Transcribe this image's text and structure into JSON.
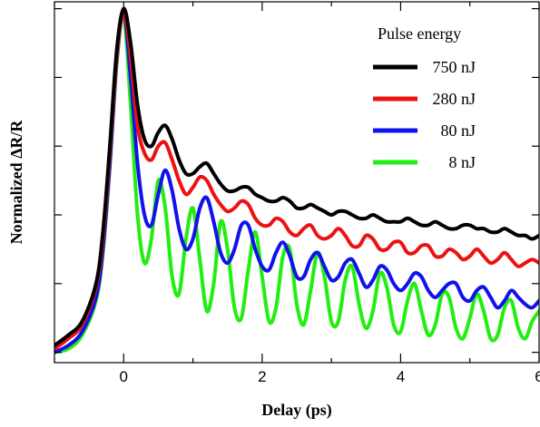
{
  "chart_data": {
    "type": "line",
    "title": "",
    "xlabel": "Delay (ps)",
    "ylabel": "Normalized ΔR/R",
    "xlim": [
      -1,
      6
    ],
    "ylim": [
      -0.03,
      1.02
    ],
    "x_ticks": [
      0,
      2,
      4,
      6
    ],
    "x_tick_labels": [
      "0",
      "2",
      "4",
      "6"
    ],
    "y_tick_count": 6,
    "y_tick_labels_shown": false,
    "grid": false,
    "legend": {
      "title": "Pulse energy",
      "placement": "top-right"
    },
    "series": [
      {
        "name": "750 nJ",
        "color": "#000000",
        "x": [
          -1.0,
          -0.8,
          -0.6,
          -0.4,
          -0.3,
          -0.2,
          -0.1,
          0.0,
          0.1,
          0.2,
          0.3,
          0.4,
          0.5,
          0.6,
          0.7,
          0.8,
          0.9,
          1.0,
          1.1,
          1.2,
          1.3,
          1.4,
          1.5,
          1.6,
          1.7,
          1.8,
          1.9,
          2.0,
          2.1,
          2.2,
          2.3,
          2.4,
          2.5,
          2.6,
          2.7,
          2.8,
          2.9,
          3.0,
          3.1,
          3.2,
          3.3,
          3.4,
          3.5,
          3.6,
          3.7,
          3.8,
          3.9,
          4.0,
          4.1,
          4.2,
          4.3,
          4.4,
          4.5,
          4.6,
          4.7,
          4.8,
          4.9,
          5.0,
          5.1,
          5.2,
          5.3,
          5.4,
          5.5,
          5.6,
          5.7,
          5.8,
          5.9,
          6.0
        ],
        "values": [
          0.02,
          0.05,
          0.09,
          0.2,
          0.35,
          0.6,
          0.88,
          1.0,
          0.9,
          0.72,
          0.62,
          0.6,
          0.64,
          0.66,
          0.62,
          0.56,
          0.52,
          0.52,
          0.54,
          0.55,
          0.52,
          0.49,
          0.47,
          0.47,
          0.48,
          0.48,
          0.46,
          0.45,
          0.44,
          0.44,
          0.45,
          0.44,
          0.42,
          0.42,
          0.43,
          0.42,
          0.41,
          0.4,
          0.41,
          0.41,
          0.4,
          0.39,
          0.39,
          0.4,
          0.39,
          0.38,
          0.38,
          0.38,
          0.39,
          0.38,
          0.37,
          0.37,
          0.38,
          0.37,
          0.36,
          0.36,
          0.37,
          0.37,
          0.36,
          0.36,
          0.35,
          0.35,
          0.36,
          0.35,
          0.34,
          0.34,
          0.33,
          0.34
        ]
      },
      {
        "name": "280 nJ",
        "color": "#ee1111",
        "x": [
          -1.0,
          -0.8,
          -0.6,
          -0.4,
          -0.3,
          -0.2,
          -0.1,
          0.0,
          0.1,
          0.2,
          0.3,
          0.4,
          0.5,
          0.6,
          0.7,
          0.8,
          0.9,
          1.0,
          1.1,
          1.2,
          1.3,
          1.4,
          1.5,
          1.6,
          1.7,
          1.8,
          1.9,
          2.0,
          2.1,
          2.2,
          2.3,
          2.4,
          2.5,
          2.6,
          2.7,
          2.8,
          2.9,
          3.0,
          3.1,
          3.2,
          3.3,
          3.4,
          3.5,
          3.6,
          3.7,
          3.8,
          3.9,
          4.0,
          4.1,
          4.2,
          4.3,
          4.4,
          4.5,
          4.6,
          4.7,
          4.8,
          4.9,
          5.0,
          5.1,
          5.2,
          5.3,
          5.4,
          5.5,
          5.6,
          5.7,
          5.8,
          5.9,
          6.0
        ],
        "values": [
          0.01,
          0.04,
          0.08,
          0.19,
          0.33,
          0.58,
          0.86,
          0.99,
          0.86,
          0.66,
          0.58,
          0.56,
          0.6,
          0.61,
          0.56,
          0.5,
          0.46,
          0.48,
          0.51,
          0.5,
          0.46,
          0.43,
          0.41,
          0.42,
          0.44,
          0.43,
          0.39,
          0.37,
          0.37,
          0.39,
          0.38,
          0.35,
          0.34,
          0.36,
          0.37,
          0.34,
          0.33,
          0.34,
          0.36,
          0.34,
          0.31,
          0.31,
          0.34,
          0.33,
          0.3,
          0.3,
          0.32,
          0.32,
          0.29,
          0.29,
          0.31,
          0.31,
          0.28,
          0.28,
          0.3,
          0.29,
          0.27,
          0.28,
          0.3,
          0.28,
          0.26,
          0.27,
          0.29,
          0.27,
          0.25,
          0.26,
          0.27,
          0.26
        ]
      },
      {
        "name": "80 nJ",
        "color": "#1111ee",
        "x": [
          -1.0,
          -0.8,
          -0.6,
          -0.4,
          -0.3,
          -0.2,
          -0.1,
          0.0,
          0.1,
          0.2,
          0.3,
          0.4,
          0.5,
          0.6,
          0.7,
          0.8,
          0.9,
          1.0,
          1.1,
          1.2,
          1.3,
          1.4,
          1.5,
          1.6,
          1.7,
          1.8,
          1.9,
          2.0,
          2.1,
          2.2,
          2.3,
          2.4,
          2.5,
          2.6,
          2.7,
          2.8,
          2.9,
          3.0,
          3.1,
          3.2,
          3.3,
          3.4,
          3.5,
          3.6,
          3.7,
          3.8,
          3.9,
          4.0,
          4.1,
          4.2,
          4.3,
          4.4,
          4.5,
          4.6,
          4.7,
          4.8,
          4.9,
          5.0,
          5.1,
          5.2,
          5.3,
          5.4,
          5.5,
          5.6,
          5.7,
          5.8,
          5.9,
          6.0
        ],
        "values": [
          0.0,
          0.02,
          0.06,
          0.16,
          0.3,
          0.55,
          0.85,
          0.99,
          0.8,
          0.55,
          0.4,
          0.37,
          0.46,
          0.53,
          0.47,
          0.36,
          0.3,
          0.33,
          0.42,
          0.45,
          0.38,
          0.29,
          0.26,
          0.3,
          0.37,
          0.37,
          0.3,
          0.25,
          0.24,
          0.29,
          0.32,
          0.28,
          0.22,
          0.22,
          0.27,
          0.29,
          0.25,
          0.21,
          0.22,
          0.26,
          0.27,
          0.23,
          0.19,
          0.21,
          0.25,
          0.24,
          0.2,
          0.18,
          0.2,
          0.23,
          0.22,
          0.18,
          0.16,
          0.18,
          0.2,
          0.2,
          0.16,
          0.15,
          0.18,
          0.19,
          0.16,
          0.13,
          0.15,
          0.18,
          0.16,
          0.14,
          0.13,
          0.15
        ]
      },
      {
        "name": "8 nJ",
        "color": "#22ee11",
        "x": [
          -1.0,
          -0.8,
          -0.6,
          -0.4,
          -0.3,
          -0.2,
          -0.1,
          0.0,
          0.1,
          0.2,
          0.3,
          0.4,
          0.5,
          0.6,
          0.7,
          0.8,
          0.9,
          1.0,
          1.1,
          1.2,
          1.3,
          1.4,
          1.5,
          1.6,
          1.7,
          1.8,
          1.9,
          2.0,
          2.1,
          2.2,
          2.3,
          2.4,
          2.5,
          2.6,
          2.7,
          2.8,
          2.9,
          3.0,
          3.1,
          3.2,
          3.3,
          3.4,
          3.5,
          3.6,
          3.7,
          3.8,
          3.9,
          4.0,
          4.1,
          4.2,
          4.3,
          4.4,
          4.5,
          4.6,
          4.7,
          4.8,
          4.9,
          5.0,
          5.1,
          5.2,
          5.3,
          5.4,
          5.5,
          5.6,
          5.7,
          5.8,
          5.9,
          6.0
        ],
        "values": [
          0.0,
          0.01,
          0.05,
          0.15,
          0.29,
          0.54,
          0.84,
          0.98,
          0.72,
          0.4,
          0.26,
          0.33,
          0.5,
          0.42,
          0.22,
          0.17,
          0.33,
          0.42,
          0.27,
          0.12,
          0.2,
          0.38,
          0.3,
          0.13,
          0.1,
          0.24,
          0.35,
          0.22,
          0.09,
          0.13,
          0.28,
          0.3,
          0.14,
          0.08,
          0.18,
          0.29,
          0.22,
          0.09,
          0.09,
          0.21,
          0.25,
          0.14,
          0.07,
          0.12,
          0.23,
          0.19,
          0.08,
          0.06,
          0.15,
          0.2,
          0.12,
          0.05,
          0.08,
          0.17,
          0.16,
          0.07,
          0.04,
          0.1,
          0.17,
          0.12,
          0.04,
          0.05,
          0.13,
          0.15,
          0.07,
          0.04,
          0.09,
          0.12
        ]
      }
    ]
  }
}
